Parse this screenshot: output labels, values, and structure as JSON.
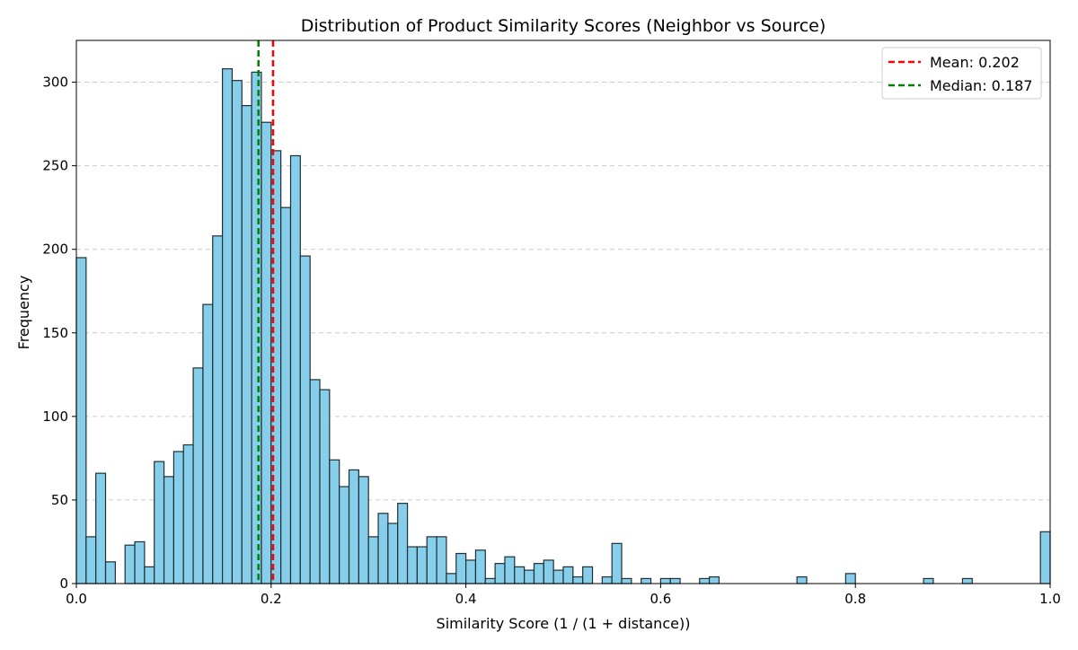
{
  "chart_data": {
    "type": "bar",
    "title": "Distribution of Product Similarity Scores (Neighbor vs Source)",
    "xlabel": "Similarity Score (1 / (1 + distance))",
    "ylabel": "Frequency",
    "xlim": [
      0,
      1.0
    ],
    "ylim": [
      0,
      325
    ],
    "xticks": [
      0.0,
      0.2,
      0.4,
      0.6,
      0.8,
      1.0
    ],
    "xtick_labels": [
      "0.0",
      "0.2",
      "0.4",
      "0.6",
      "0.8",
      "1.0"
    ],
    "yticks": [
      0,
      50,
      100,
      150,
      200,
      250,
      300
    ],
    "ytick_labels": [
      "0",
      "50",
      "100",
      "150",
      "200",
      "250",
      "300"
    ],
    "grid": "y-dashed",
    "legend_position": "top-right",
    "bin_width": 0.01,
    "bin_starts": [
      0.0,
      0.01,
      0.02,
      0.03,
      0.04,
      0.05,
      0.06,
      0.07,
      0.08,
      0.09,
      0.1,
      0.11,
      0.12,
      0.13,
      0.14,
      0.15,
      0.16,
      0.17,
      0.18,
      0.19,
      0.2,
      0.21,
      0.22,
      0.23,
      0.24,
      0.25,
      0.26,
      0.27,
      0.28,
      0.29,
      0.3,
      0.31,
      0.32,
      0.33,
      0.34,
      0.35,
      0.36,
      0.37,
      0.38,
      0.39,
      0.4,
      0.41,
      0.42,
      0.43,
      0.44,
      0.45,
      0.46,
      0.47,
      0.48,
      0.49,
      0.5,
      0.51,
      0.52,
      0.53,
      0.54,
      0.55,
      0.56,
      0.57,
      0.58,
      0.59,
      0.6,
      0.61,
      0.62,
      0.63,
      0.64,
      0.65,
      0.66,
      0.67,
      0.68,
      0.69,
      0.7,
      0.71,
      0.72,
      0.73,
      0.74,
      0.75,
      0.76,
      0.77,
      0.78,
      0.79,
      0.8,
      0.81,
      0.82,
      0.83,
      0.84,
      0.85,
      0.86,
      0.87,
      0.88,
      0.89,
      0.9,
      0.91,
      0.92,
      0.93,
      0.94,
      0.95,
      0.96,
      0.97,
      0.98,
      0.99
    ],
    "frequencies": [
      195,
      28,
      66,
      13,
      0,
      23,
      25,
      10,
      73,
      64,
      79,
      83,
      129,
      167,
      208,
      308,
      301,
      286,
      306,
      276,
      259,
      225,
      256,
      196,
      122,
      116,
      74,
      58,
      68,
      64,
      28,
      42,
      36,
      48,
      22,
      22,
      28,
      28,
      6,
      18,
      14,
      20,
      3,
      12,
      16,
      10,
      8,
      12,
      14,
      8,
      10,
      4,
      10,
      0,
      4,
      24,
      3,
      0,
      3,
      0,
      3,
      3,
      0,
      0,
      3,
      4,
      0,
      0,
      0,
      0,
      0,
      0,
      0,
      0,
      4,
      0,
      0,
      0,
      0,
      6,
      0,
      0,
      0,
      0,
      0,
      0,
      0,
      3,
      0,
      0,
      0,
      3,
      0,
      0,
      0,
      0,
      0,
      0,
      0,
      31
    ],
    "bar_color": "#87CEEB",
    "bar_edge_color": "#1f2f33",
    "reference_lines": [
      {
        "name": "Mean: 0.202",
        "value": 0.202,
        "color": "#ff0000",
        "style": "dashed"
      },
      {
        "name": "Median: 0.187",
        "value": 0.187,
        "color": "#008000",
        "style": "dashed"
      }
    ]
  }
}
